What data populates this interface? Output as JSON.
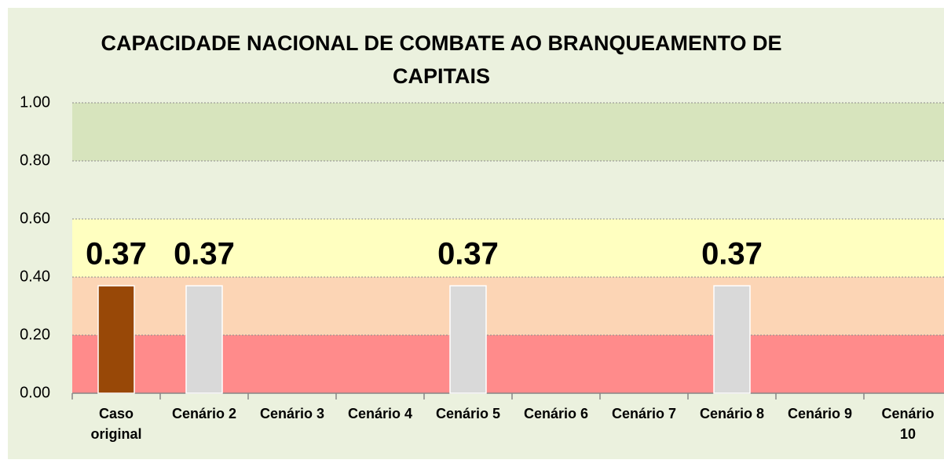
{
  "chart_data": {
    "type": "bar",
    "title": "CAPACIDADE NACIONAL DE COMBATE AO BRANQUEAMENTO DE CAPITAIS",
    "categories": [
      "Caso original",
      "Cenário 2",
      "Cenário 3",
      "Cenário 4",
      "Cenário 5",
      "Cenário 6",
      "Cenário 7",
      "Cenário 8",
      "Cenário 9",
      "Cenário 10"
    ],
    "values": [
      0.37,
      0.37,
      null,
      null,
      0.37,
      null,
      null,
      0.37,
      null,
      null
    ],
    "colors": [
      "#984807",
      "#d9d9d9",
      null,
      null,
      "#d9d9d9",
      null,
      null,
      "#d9d9d9",
      null,
      null
    ],
    "ylim": [
      0,
      1
    ],
    "yticks": [
      {
        "value": 0,
        "label": "0.00"
      },
      {
        "value": 0.2,
        "label": "0.20"
      },
      {
        "value": 0.4,
        "label": "0.40"
      },
      {
        "value": 0.6,
        "label": "0.60"
      },
      {
        "value": 0.8,
        "label": "0.80"
      },
      {
        "value": 1,
        "label": "1.00"
      }
    ],
    "bands": [
      {
        "from": 0,
        "to": 0.2,
        "color": "#ff8b8b"
      },
      {
        "from": 0.2,
        "to": 0.4,
        "color": "#fcd5b5"
      },
      {
        "from": 0.4,
        "to": 0.6,
        "color": "#ffffc0"
      },
      {
        "from": 0.6,
        "to": 0.8,
        "color": "#ebf1de"
      },
      {
        "from": 0.8,
        "to": 1,
        "color": "#d7e4bd"
      }
    ],
    "grid": true
  }
}
